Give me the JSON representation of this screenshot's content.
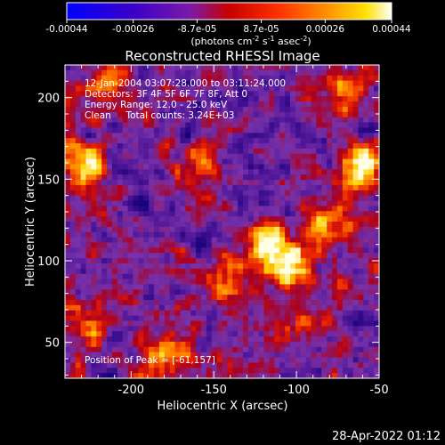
{
  "colorbar": {
    "tick_labels": [
      "-0.00044",
      "-0.00026",
      "-8.7e-05",
      "8.7e-05",
      "0.00026",
      "0.00044"
    ],
    "unit_label": "(photons cm",
    "unit_exp1": "-2",
    "unit_mid": " s",
    "unit_exp2": "-1",
    "unit_end": " asec",
    "unit_exp3": "-2",
    "unit_close": ")",
    "range": [
      -0.00044,
      0.00044
    ]
  },
  "chart_data": {
    "type": "heatmap",
    "title": "Reconstructed RHESSI Image",
    "xlabel": "Heliocentric X (arcsec)",
    "ylabel": "Heliocentric Y (arcsec)",
    "xlim": [
      -240,
      -50
    ],
    "ylim": [
      28,
      220
    ],
    "x_ticks": [
      -200,
      -150,
      -100,
      -50
    ],
    "y_ticks": [
      50,
      100,
      150,
      200
    ],
    "x_tick_labels": [
      "-200",
      "-150",
      "-100",
      "-50"
    ],
    "y_tick_labels": [
      "50",
      "100",
      "150",
      "200"
    ],
    "colormap": "rainbow-hot (blue-purple-red-orange-yellow-white)",
    "info_lines": [
      "12-Jan-2004 03:07:28.000 to 03:11:24.000",
      "Detectors: 3F 4F 5F 6F 7F 8F, Att 0",
      "Energy Range: 12.0 - 25.0 keV",
      "Clean     Total counts: 3.24E+03"
    ],
    "peak_label": "Position of Peak = [-61,157]",
    "peak_position": [
      -61,
      157
    ],
    "sources": [
      {
        "x": -61,
        "y": 157,
        "amp": 1.0
      },
      {
        "x": -105,
        "y": 100,
        "amp": 0.95
      },
      {
        "x": -120,
        "y": 112,
        "amp": 0.8
      },
      {
        "x": -80,
        "y": 125,
        "amp": 0.6
      },
      {
        "x": -180,
        "y": 40,
        "amp": 0.85
      },
      {
        "x": -230,
        "y": 158,
        "amp": 0.75
      },
      {
        "x": -215,
        "y": 205,
        "amp": 0.6
      },
      {
        "x": -140,
        "y": 85,
        "amp": 0.55
      },
      {
        "x": -95,
        "y": 60,
        "amp": 0.5
      },
      {
        "x": -225,
        "y": 60,
        "amp": 0.5
      },
      {
        "x": -70,
        "y": 205,
        "amp": 0.55
      },
      {
        "x": -160,
        "y": 160,
        "amp": 0.45
      }
    ]
  },
  "footer": {
    "timestamp": "28-Apr-2022 01:12"
  }
}
